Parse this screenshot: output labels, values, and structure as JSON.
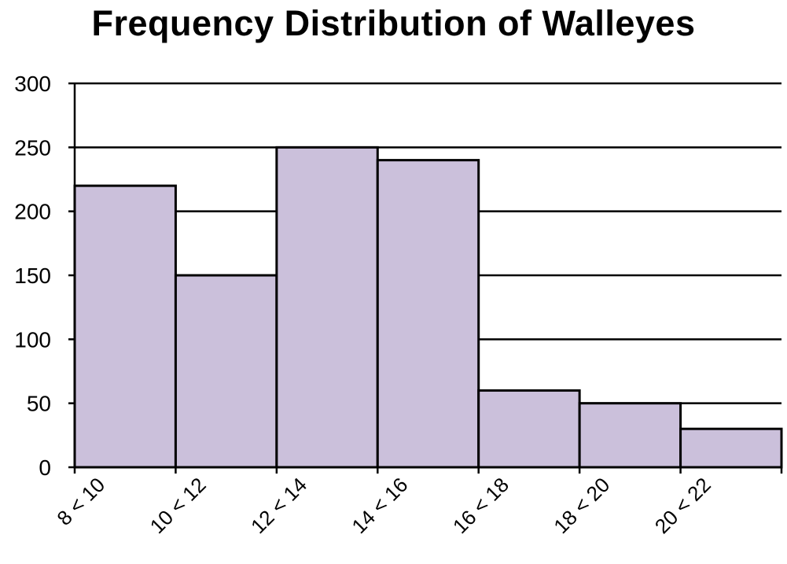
{
  "chart_data": {
    "type": "bar",
    "title": "Frequency Distribution of Walleyes",
    "xlabel": "",
    "ylabel": "",
    "categories": [
      "8 < 10",
      "10 < 12",
      "12 < 14",
      "14 < 16",
      "16 < 18",
      "18 < 20",
      "20 < 22"
    ],
    "values": [
      220,
      150,
      250,
      240,
      60,
      50,
      30
    ],
    "ylim": [
      0,
      300
    ],
    "yticks": [
      "0",
      "50",
      "100",
      "150",
      "200",
      "250",
      "300"
    ],
    "grid": true,
    "legend": "none",
    "bar_color": "#CBC0DB",
    "edge_color": "#000000"
  }
}
